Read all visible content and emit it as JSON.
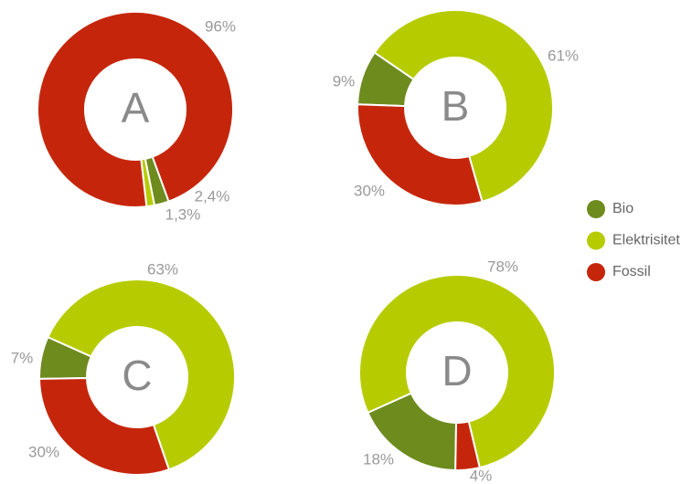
{
  "chart_data": [
    {
      "type": "pie",
      "title": "A",
      "values": [
        2.4,
        1.3,
        96
      ],
      "value_labels": [
        "2,4%",
        "1,3%",
        "96%"
      ]
    },
    {
      "type": "pie",
      "title": "B",
      "values": [
        9,
        61,
        30
      ],
      "value_labels": [
        "9%",
        "61%",
        "30%"
      ]
    },
    {
      "type": "pie",
      "title": "C",
      "values": [
        7,
        63,
        30
      ],
      "value_labels": [
        "7%",
        "63%",
        "30%"
      ]
    },
    {
      "type": "pie",
      "title": "D",
      "values": [
        18,
        78,
        4
      ],
      "value_labels": [
        "18%",
        "78%",
        "4%"
      ]
    }
  ],
  "legend": {
    "items": [
      {
        "name": "Bio",
        "color": "#6e8b1e"
      },
      {
        "name": "Elektrisitet",
        "color": "#b6cc00"
      },
      {
        "name": "Fossil",
        "color": "#c5260b"
      }
    ]
  }
}
